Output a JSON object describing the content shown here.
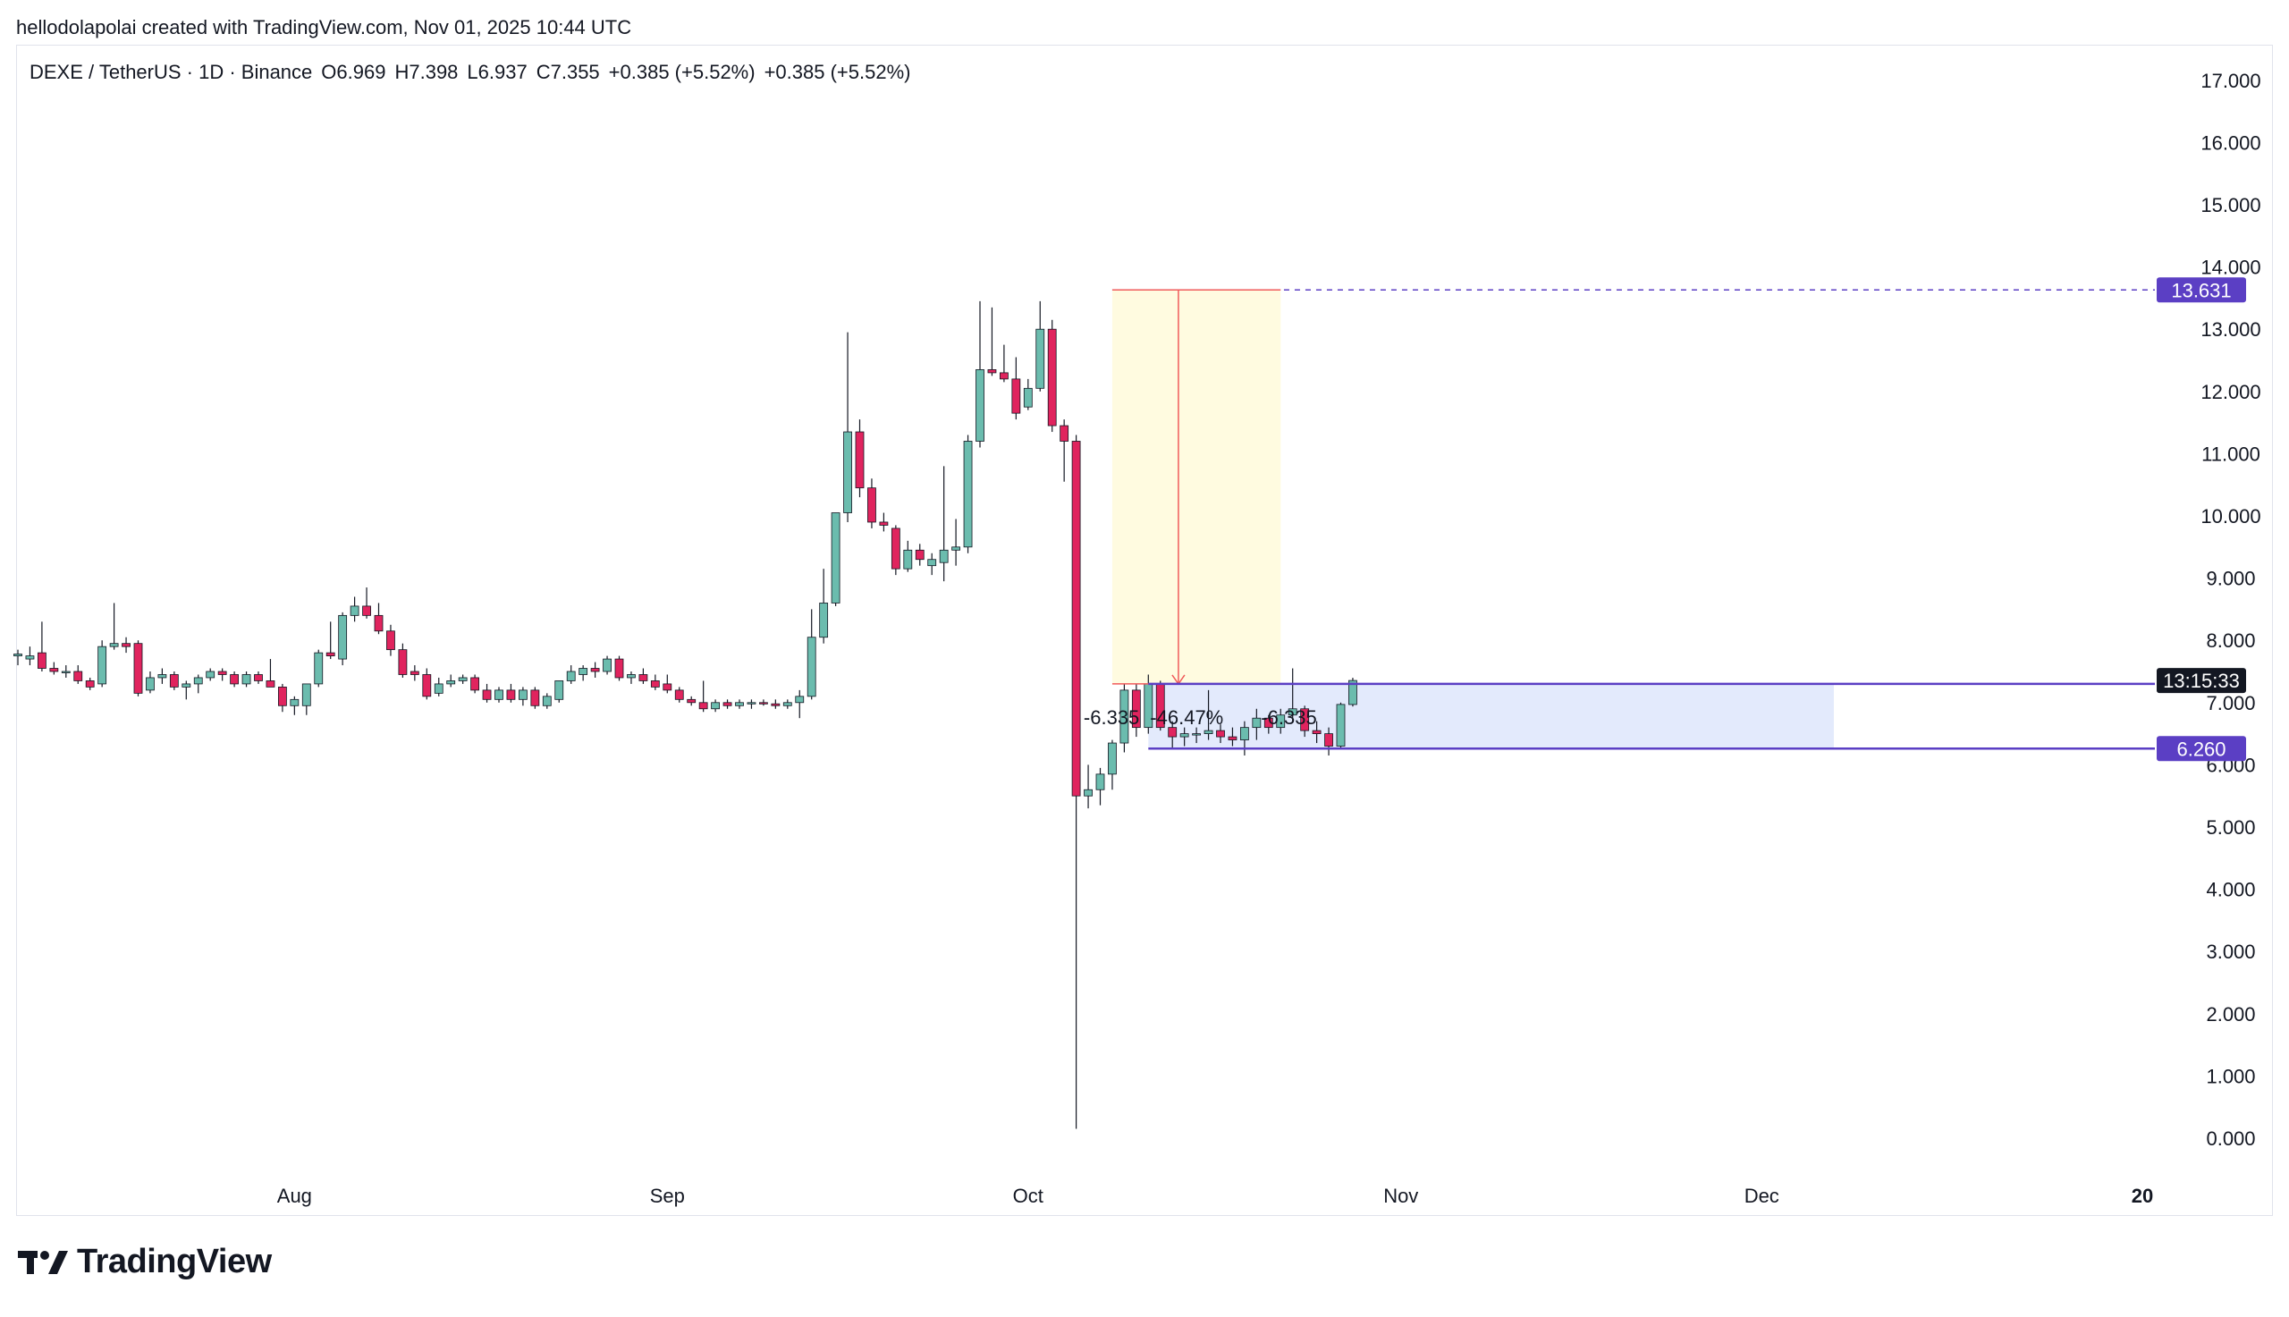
{
  "header": {
    "credit": "hellodolapolai created with TradingView.com, Nov 01, 2025 10:44 UTC"
  },
  "legend": {
    "symbol": "DEXE / TetherUS · 1D · Binance",
    "open": "O6.969",
    "high": "H7.398",
    "low": "L6.937",
    "close": "C7.355",
    "change1": "+0.385 (+5.52%)",
    "change2": "+0.385 (+5.52%)"
  },
  "brand": {
    "name": "TradingView"
  },
  "colors": {
    "up": "#6bbcae",
    "down": "#e0245e",
    "wick": "#131722",
    "target_line": "#5b3fc4",
    "yellow_zone": "#fffbe0",
    "blue_zone": "#e3eafc",
    "red_line": "#f05a5a"
  },
  "chart_data": {
    "type": "candlestick",
    "ylim": [
      0,
      17.5
    ],
    "y_ticks": [
      "0.000",
      "1.000",
      "2.000",
      "3.000",
      "4.000",
      "5.000",
      "6.000",
      "7.000",
      "8.000",
      "9.000",
      "10.000",
      "11.000",
      "12.000",
      "13.000",
      "14.000",
      "15.000",
      "16.000",
      "17.000"
    ],
    "x_ticks": [
      {
        "label": "Aug",
        "index": 23
      },
      {
        "label": "Sep",
        "index": 54
      },
      {
        "label": "Oct",
        "index": 84
      },
      {
        "label": "Nov",
        "index": 115
      },
      {
        "label": "Dec",
        "index": 145
      },
      {
        "label": "20",
        "index": 176
      }
    ],
    "price_labels": [
      {
        "text": "13.631",
        "value": 13.631,
        "style": "purple"
      },
      {
        "text": "13:15:33",
        "value": 7.355,
        "style": "black"
      },
      {
        "text": "6.260",
        "value": 6.26,
        "style": "purple"
      }
    ],
    "annotations": {
      "red_measure_left": "-6.335",
      "red_measure_pct": "-46.47%",
      "red_measure_right": "-6.335"
    },
    "zones": {
      "yellow": {
        "from_index": 91,
        "to_index": 105,
        "top": 13.631,
        "bottom": 7.3
      },
      "blue": {
        "from_index": 94,
        "to_index": 151,
        "top": 7.3,
        "bottom": 6.26
      },
      "dashed_level": 13.631,
      "upper_line": 7.3,
      "lower_line": 6.26
    },
    "candles": [
      {
        "o": 7.75,
        "h": 7.85,
        "l": 7.6,
        "c": 7.78
      },
      {
        "o": 7.7,
        "h": 7.9,
        "l": 7.6,
        "c": 7.75
      },
      {
        "o": 7.8,
        "h": 8.3,
        "l": 7.5,
        "c": 7.55
      },
      {
        "o": 7.55,
        "h": 7.65,
        "l": 7.45,
        "c": 7.5
      },
      {
        "o": 7.5,
        "h": 7.6,
        "l": 7.4,
        "c": 7.5
      },
      {
        "o": 7.5,
        "h": 7.6,
        "l": 7.3,
        "c": 7.35
      },
      {
        "o": 7.35,
        "h": 7.4,
        "l": 7.2,
        "c": 7.25
      },
      {
        "o": 7.3,
        "h": 8.0,
        "l": 7.25,
        "c": 7.9
      },
      {
        "o": 7.9,
        "h": 8.6,
        "l": 7.85,
        "c": 7.95
      },
      {
        "o": 7.95,
        "h": 8.05,
        "l": 7.8,
        "c": 7.9
      },
      {
        "o": 7.95,
        "h": 8.0,
        "l": 7.1,
        "c": 7.15
      },
      {
        "o": 7.2,
        "h": 7.5,
        "l": 7.15,
        "c": 7.4
      },
      {
        "o": 7.4,
        "h": 7.55,
        "l": 7.3,
        "c": 7.45
      },
      {
        "o": 7.45,
        "h": 7.5,
        "l": 7.2,
        "c": 7.25
      },
      {
        "o": 7.25,
        "h": 7.35,
        "l": 7.05,
        "c": 7.3
      },
      {
        "o": 7.3,
        "h": 7.45,
        "l": 7.15,
        "c": 7.4
      },
      {
        "o": 7.4,
        "h": 7.55,
        "l": 7.35,
        "c": 7.5
      },
      {
        "o": 7.5,
        "h": 7.55,
        "l": 7.35,
        "c": 7.45
      },
      {
        "o": 7.45,
        "h": 7.5,
        "l": 7.25,
        "c": 7.3
      },
      {
        "o": 7.3,
        "h": 7.5,
        "l": 7.25,
        "c": 7.45
      },
      {
        "o": 7.45,
        "h": 7.5,
        "l": 7.3,
        "c": 7.35
      },
      {
        "o": 7.35,
        "h": 7.7,
        "l": 7.3,
        "c": 7.25
      },
      {
        "o": 7.25,
        "h": 7.3,
        "l": 6.85,
        "c": 6.95
      },
      {
        "o": 6.95,
        "h": 7.1,
        "l": 6.8,
        "c": 7.05
      },
      {
        "o": 6.95,
        "h": 7.3,
        "l": 6.8,
        "c": 7.3
      },
      {
        "o": 7.3,
        "h": 7.85,
        "l": 7.25,
        "c": 7.8
      },
      {
        "o": 7.8,
        "h": 8.3,
        "l": 7.7,
        "c": 7.75
      },
      {
        "o": 7.7,
        "h": 8.45,
        "l": 7.6,
        "c": 8.4
      },
      {
        "o": 8.4,
        "h": 8.7,
        "l": 8.3,
        "c": 8.55
      },
      {
        "o": 8.55,
        "h": 8.85,
        "l": 8.35,
        "c": 8.4
      },
      {
        "o": 8.4,
        "h": 8.6,
        "l": 8.1,
        "c": 8.15
      },
      {
        "o": 8.15,
        "h": 8.25,
        "l": 7.75,
        "c": 7.85
      },
      {
        "o": 7.85,
        "h": 7.95,
        "l": 7.4,
        "c": 7.45
      },
      {
        "o": 7.5,
        "h": 7.6,
        "l": 7.35,
        "c": 7.45
      },
      {
        "o": 7.45,
        "h": 7.55,
        "l": 7.05,
        "c": 7.1
      },
      {
        "o": 7.15,
        "h": 7.4,
        "l": 7.1,
        "c": 7.3
      },
      {
        "o": 7.3,
        "h": 7.45,
        "l": 7.25,
        "c": 7.35
      },
      {
        "o": 7.35,
        "h": 7.45,
        "l": 7.3,
        "c": 7.4
      },
      {
        "o": 7.4,
        "h": 7.45,
        "l": 7.15,
        "c": 7.2
      },
      {
        "o": 7.2,
        "h": 7.3,
        "l": 7.0,
        "c": 7.05
      },
      {
        "o": 7.05,
        "h": 7.25,
        "l": 7.0,
        "c": 7.2
      },
      {
        "o": 7.2,
        "h": 7.3,
        "l": 7.0,
        "c": 7.05
      },
      {
        "o": 7.05,
        "h": 7.25,
        "l": 6.95,
        "c": 7.2
      },
      {
        "o": 7.2,
        "h": 7.25,
        "l": 6.9,
        "c": 6.95
      },
      {
        "o": 6.95,
        "h": 7.15,
        "l": 6.9,
        "c": 7.1
      },
      {
        "o": 7.05,
        "h": 7.35,
        "l": 7.0,
        "c": 7.35
      },
      {
        "o": 7.35,
        "h": 7.6,
        "l": 7.3,
        "c": 7.5
      },
      {
        "o": 7.45,
        "h": 7.6,
        "l": 7.35,
        "c": 7.55
      },
      {
        "o": 7.55,
        "h": 7.65,
        "l": 7.4,
        "c": 7.5
      },
      {
        "o": 7.5,
        "h": 7.75,
        "l": 7.45,
        "c": 7.7
      },
      {
        "o": 7.7,
        "h": 7.75,
        "l": 7.35,
        "c": 7.4
      },
      {
        "o": 7.4,
        "h": 7.5,
        "l": 7.3,
        "c": 7.45
      },
      {
        "o": 7.45,
        "h": 7.55,
        "l": 7.3,
        "c": 7.35
      },
      {
        "o": 7.35,
        "h": 7.45,
        "l": 7.2,
        "c": 7.25
      },
      {
        "o": 7.3,
        "h": 7.45,
        "l": 7.15,
        "c": 7.2
      },
      {
        "o": 7.2,
        "h": 7.25,
        "l": 7.0,
        "c": 7.05
      },
      {
        "o": 7.05,
        "h": 7.1,
        "l": 6.95,
        "c": 7.0
      },
      {
        "o": 7.0,
        "h": 7.35,
        "l": 6.85,
        "c": 6.9
      },
      {
        "o": 6.9,
        "h": 7.05,
        "l": 6.85,
        "c": 7.0
      },
      {
        "o": 7.0,
        "h": 7.05,
        "l": 6.9,
        "c": 6.95
      },
      {
        "o": 6.95,
        "h": 7.05,
        "l": 6.9,
        "c": 7.0
      },
      {
        "o": 7.0,
        "h": 7.05,
        "l": 6.9,
        "c": 7.0
      },
      {
        "o": 7.0,
        "h": 7.05,
        "l": 6.95,
        "c": 6.98
      },
      {
        "o": 6.98,
        "h": 7.05,
        "l": 6.9,
        "c": 6.95
      },
      {
        "o": 6.95,
        "h": 7.05,
        "l": 6.9,
        "c": 7.0
      },
      {
        "o": 7.0,
        "h": 7.2,
        "l": 6.75,
        "c": 7.1
      },
      {
        "o": 7.1,
        "h": 8.5,
        "l": 7.05,
        "c": 8.05
      },
      {
        "o": 8.05,
        "h": 9.15,
        "l": 7.95,
        "c": 8.6
      },
      {
        "o": 8.6,
        "h": 10.05,
        "l": 8.55,
        "c": 10.05
      },
      {
        "o": 10.05,
        "h": 12.95,
        "l": 9.9,
        "c": 11.35
      },
      {
        "o": 11.35,
        "h": 11.55,
        "l": 10.3,
        "c": 10.45
      },
      {
        "o": 10.45,
        "h": 10.6,
        "l": 9.8,
        "c": 9.9
      },
      {
        "o": 9.9,
        "h": 10.05,
        "l": 9.75,
        "c": 9.85
      },
      {
        "o": 9.8,
        "h": 9.85,
        "l": 9.05,
        "c": 9.15
      },
      {
        "o": 9.15,
        "h": 9.6,
        "l": 9.1,
        "c": 9.45
      },
      {
        "o": 9.45,
        "h": 9.55,
        "l": 9.2,
        "c": 9.3
      },
      {
        "o": 9.2,
        "h": 9.4,
        "l": 9.05,
        "c": 9.3
      },
      {
        "o": 9.25,
        "h": 10.8,
        "l": 8.95,
        "c": 9.45
      },
      {
        "o": 9.45,
        "h": 9.95,
        "l": 9.2,
        "c": 9.5
      },
      {
        "o": 9.5,
        "h": 11.3,
        "l": 9.4,
        "c": 11.2
      },
      {
        "o": 11.2,
        "h": 13.45,
        "l": 11.1,
        "c": 12.35
      },
      {
        "o": 12.35,
        "h": 13.35,
        "l": 12.25,
        "c": 12.3
      },
      {
        "o": 12.3,
        "h": 12.75,
        "l": 12.15,
        "c": 12.2
      },
      {
        "o": 12.2,
        "h": 12.55,
        "l": 11.55,
        "c": 11.65
      },
      {
        "o": 11.75,
        "h": 12.2,
        "l": 11.7,
        "c": 12.05
      },
      {
        "o": 12.05,
        "h": 13.45,
        "l": 12.0,
        "c": 13.0
      },
      {
        "o": 13.0,
        "h": 13.15,
        "l": 11.35,
        "c": 11.45
      },
      {
        "o": 11.45,
        "h": 11.55,
        "l": 10.55,
        "c": 11.2
      },
      {
        "o": 11.2,
        "h": 11.3,
        "l": 0.15,
        "c": 5.5
      },
      {
        "o": 5.5,
        "h": 6.0,
        "l": 5.3,
        "c": 5.6
      },
      {
        "o": 5.6,
        "h": 5.95,
        "l": 5.35,
        "c": 5.85
      },
      {
        "o": 5.85,
        "h": 6.4,
        "l": 5.6,
        "c": 6.35
      },
      {
        "o": 6.35,
        "h": 7.3,
        "l": 6.2,
        "c": 7.2
      },
      {
        "o": 7.2,
        "h": 7.3,
        "l": 6.45,
        "c": 6.6
      },
      {
        "o": 6.6,
        "h": 7.45,
        "l": 6.5,
        "c": 7.3
      },
      {
        "o": 7.3,
        "h": 7.35,
        "l": 6.55,
        "c": 6.6
      },
      {
        "o": 6.6,
        "h": 6.7,
        "l": 6.25,
        "c": 6.45
      },
      {
        "o": 6.45,
        "h": 6.6,
        "l": 6.3,
        "c": 6.5
      },
      {
        "o": 6.5,
        "h": 6.6,
        "l": 6.35,
        "c": 6.5
      },
      {
        "o": 6.5,
        "h": 7.2,
        "l": 6.4,
        "c": 6.55
      },
      {
        "o": 6.55,
        "h": 6.65,
        "l": 6.35,
        "c": 6.45
      },
      {
        "o": 6.45,
        "h": 6.6,
        "l": 6.3,
        "c": 6.4
      },
      {
        "o": 6.4,
        "h": 6.7,
        "l": 6.15,
        "c": 6.6
      },
      {
        "o": 6.6,
        "h": 6.9,
        "l": 6.4,
        "c": 6.75
      },
      {
        "o": 6.75,
        "h": 6.8,
        "l": 6.5,
        "c": 6.6
      },
      {
        "o": 6.6,
        "h": 6.9,
        "l": 6.5,
        "c": 6.8
      },
      {
        "o": 6.8,
        "h": 7.55,
        "l": 6.7,
        "c": 6.9
      },
      {
        "o": 6.9,
        "h": 6.95,
        "l": 6.45,
        "c": 6.55
      },
      {
        "o": 6.55,
        "h": 6.7,
        "l": 6.35,
        "c": 6.5
      },
      {
        "o": 6.5,
        "h": 6.6,
        "l": 6.15,
        "c": 6.3
      },
      {
        "o": 6.3,
        "h": 7.0,
        "l": 6.25,
        "c": 6.97
      },
      {
        "o": 6.969,
        "h": 7.398,
        "l": 6.937,
        "c": 7.355
      }
    ]
  }
}
